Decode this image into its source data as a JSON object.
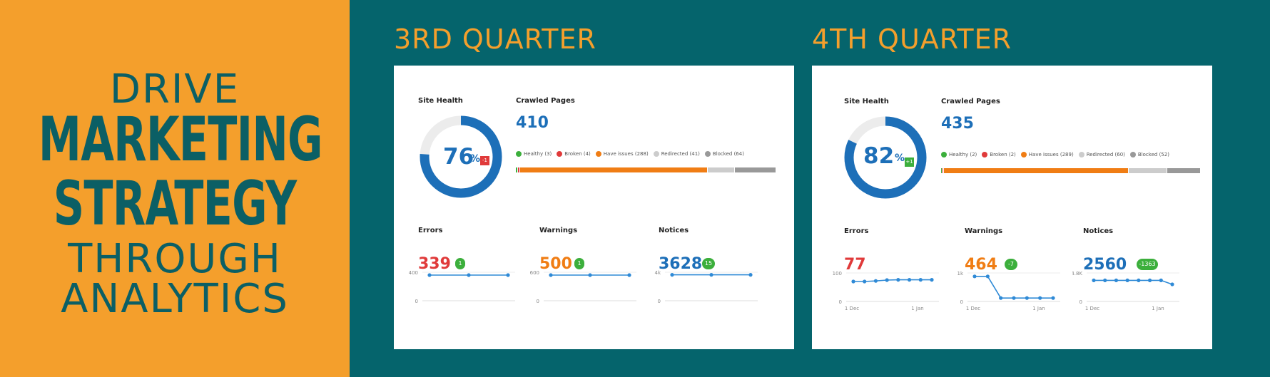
{
  "headline": {
    "line1": "DRIVE",
    "line2": "MARKETING",
    "line3": "STRATEGY",
    "line4": "THROUGH",
    "line5": "ANALYTICS"
  },
  "colors": {
    "orange": "#f49f2c",
    "teal": "#05646c",
    "blue": "#1d6fb8",
    "green": "#3caf3c",
    "red": "#e03a3a",
    "amber": "#f07d14",
    "gray_light": "#cccccc",
    "gray_dark": "#999999"
  },
  "q3": {
    "title": "3RD QUARTER",
    "site_health_label": "Site Health",
    "site_health_value": 76,
    "site_health_text": "76",
    "percent_sign": "%",
    "site_health_delta": "-1",
    "crawled_label": "Crawled Pages",
    "crawled_value": "410",
    "legend": [
      {
        "label": "Healthy (3)",
        "color": "#3caf3c"
      },
      {
        "label": "Broken (4)",
        "color": "#e03a3a"
      },
      {
        "label": "Have issues (288)",
        "color": "#f07d14"
      },
      {
        "label": "Redirected (41)",
        "color": "#cccccc"
      },
      {
        "label": "Blocked (64)",
        "color": "#999999"
      }
    ],
    "bar_counts": [
      3,
      4,
      288,
      41,
      64
    ],
    "errors": {
      "label": "Errors",
      "value": "339",
      "delta": "1",
      "y_top": "400",
      "y_zero": "0",
      "points": [
        90,
        90,
        90
      ]
    },
    "warnings": {
      "label": "Warnings",
      "value": "500",
      "delta": "1",
      "y_top": "600",
      "y_zero": "0",
      "points": [
        90,
        90,
        90
      ]
    },
    "notices": {
      "label": "Notices",
      "value": "3628",
      "delta": "15",
      "y_top": "4k",
      "y_zero": "0",
      "points": [
        91,
        91,
        91
      ]
    }
  },
  "q4": {
    "title": "4TH QUARTER",
    "site_health_label": "Site Health",
    "site_health_value": 82,
    "site_health_text": "82",
    "percent_sign": "%",
    "site_health_delta": "+1",
    "crawled_label": "Crawled Pages",
    "crawled_value": "435",
    "legend": [
      {
        "label": "Healthy (2)",
        "color": "#3caf3c"
      },
      {
        "label": "Broken (2)",
        "color": "#e03a3a"
      },
      {
        "label": "Have issues (289)",
        "color": "#f07d14"
      },
      {
        "label": "Redirected (60)",
        "color": "#cccccc"
      },
      {
        "label": "Blocked (52)",
        "color": "#999999"
      }
    ],
    "bar_counts": [
      2,
      2,
      289,
      60,
      52
    ],
    "errors": {
      "label": "Errors",
      "value": "77",
      "delta": "",
      "y_top": "100",
      "y_zero": "0",
      "x_left": "1 Dec",
      "x_right": "1 Jan",
      "points": [
        70,
        70,
        72,
        75,
        76,
        76,
        76,
        76
      ]
    },
    "warnings": {
      "label": "Warnings",
      "value": "464",
      "delta": "-7",
      "y_top": "1k",
      "y_zero": "0",
      "x_left": "1 Dec",
      "x_right": "1 Jan",
      "points": [
        88,
        88,
        12,
        12,
        12,
        12,
        12
      ]
    },
    "notices": {
      "label": "Notices",
      "value": "2560",
      "delta": "-1363",
      "y_top": "4.8K",
      "y_zero": "0",
      "x_left": "1 Dec",
      "x_right": "1 Jan",
      "points": [
        74,
        74,
        74,
        74,
        74,
        74,
        74,
        60
      ]
    }
  }
}
